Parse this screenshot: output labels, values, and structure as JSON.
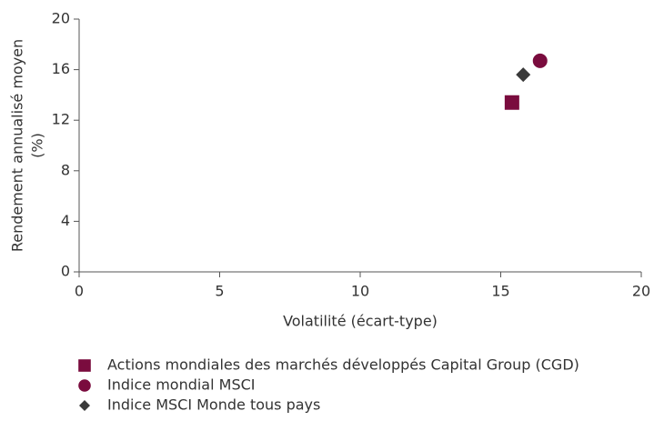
{
  "chart_data": {
    "type": "scatter",
    "xlabel": "Volatilité (écart-type)",
    "ylabel": [
      "Rendement annualisé moyen",
      "(%)"
    ],
    "xlim": [
      0,
      20
    ],
    "xticks": [
      0,
      5,
      10,
      15,
      20
    ],
    "ylim": [
      0,
      20
    ],
    "yticks": [
      0,
      4,
      8,
      12,
      16,
      20
    ],
    "series": [
      {
        "name": "Actions mondiales des marchés développés Capital Group (CGD)",
        "color": "#7a0c3e",
        "marker": "square",
        "x": [
          15.4
        ],
        "values": [
          13.4
        ]
      },
      {
        "name": "Indice mondial MSCI",
        "color": "#7a0c3e",
        "marker": "circle",
        "x": [
          16.4
        ],
        "values": [
          16.7
        ]
      },
      {
        "name": "Indice MSCI Monde tous pays",
        "color": "#3a3a3a",
        "marker": "diamond",
        "x": [
          15.8
        ],
        "values": [
          15.6
        ]
      }
    ]
  }
}
